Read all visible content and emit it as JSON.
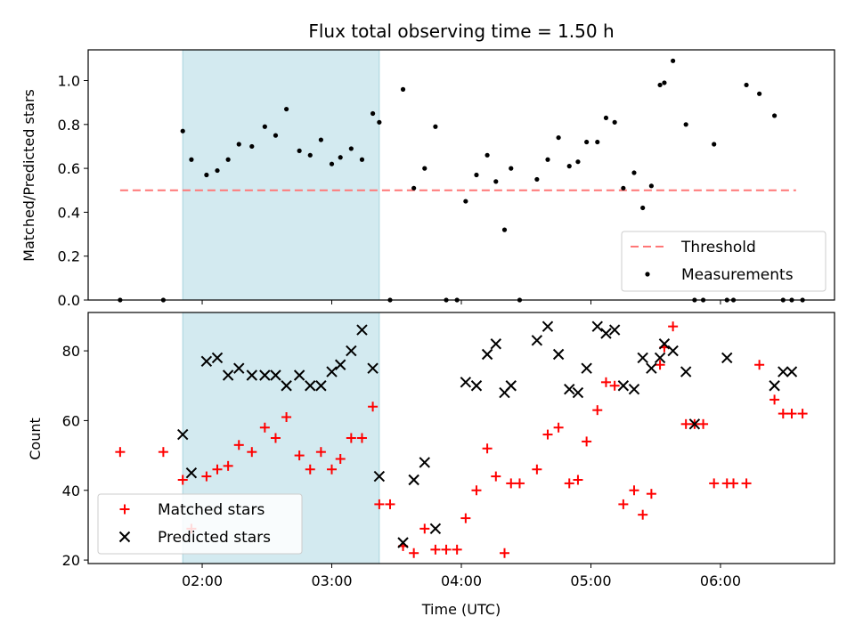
{
  "chart_data": [
    {
      "type": "scatter",
      "title": "Flux total observing time = 1.50 h",
      "ylabel": "Matched/Predicted stars",
      "xlabel": "",
      "ylim": [
        0,
        1.14
      ],
      "yticks": [
        "0.0",
        "0.2",
        "0.4",
        "0.6",
        "0.8",
        "1.0"
      ],
      "ytick_values": [
        0,
        0.2,
        0.4,
        0.6,
        0.8,
        1.0
      ],
      "xlim_hours": [
        1.12,
        6.88
      ],
      "shaded_band": {
        "x_start": "01:51",
        "x_end": "03:22",
        "color": "#d3eaf0"
      },
      "legend_position": "lower-right",
      "threshold": {
        "name": "Threshold",
        "value": 0.5,
        "x_start": "01:22",
        "x_end": "06:35",
        "color": "#ff7777"
      },
      "measurements": {
        "name": "Measurements",
        "color": "#000000",
        "x": [
          "01:22",
          "01:42",
          "01:51",
          "01:55",
          "02:02",
          "02:07",
          "02:12",
          "02:17",
          "02:23",
          "02:29",
          "02:34",
          "02:39",
          "02:45",
          "02:50",
          "02:55",
          "03:00",
          "03:04",
          "03:09",
          "03:14",
          "03:19",
          "03:22",
          "03:27",
          "03:33",
          "03:38",
          "03:43",
          "03:48",
          "03:53",
          "03:58",
          "04:02",
          "04:07",
          "04:12",
          "04:16",
          "04:20",
          "04:23",
          "04:27",
          "04:35",
          "04:40",
          "04:45",
          "04:50",
          "04:54",
          "04:58",
          "05:03",
          "05:07",
          "05:11",
          "05:15",
          "05:20",
          "05:24",
          "05:28",
          "05:32",
          "05:34",
          "05:38",
          "05:44",
          "05:48",
          "05:52",
          "05:57",
          "06:03",
          "06:06",
          "06:12",
          "06:18",
          "06:25",
          "06:29",
          "06:33",
          "06:38"
        ],
        "y": [
          0,
          0,
          0.77,
          0.64,
          0.57,
          0.59,
          0.64,
          0.71,
          0.7,
          0.79,
          0.75,
          0.87,
          0.68,
          0.66,
          0.73,
          0.62,
          0.65,
          0.69,
          0.64,
          0.85,
          0.81,
          0,
          0.96,
          0.51,
          0.6,
          0.79,
          0,
          0,
          0.45,
          0.57,
          0.66,
          0.54,
          0.32,
          0.6,
          0,
          0.55,
          0.64,
          0.74,
          0.61,
          0.63,
          0.72,
          0.72,
          0.83,
          0.81,
          0.51,
          0.58,
          0.42,
          0.52,
          0.98,
          0.99,
          1.09,
          0.8,
          0,
          0,
          0.71,
          0,
          0,
          0.98,
          0.94,
          0.84,
          0,
          0,
          0
        ]
      }
    },
    {
      "type": "scatter",
      "title": "",
      "ylabel": "Count",
      "xlabel": "Time (UTC)",
      "ylim": [
        19,
        91
      ],
      "yticks": [
        "20",
        "40",
        "60",
        "80"
      ],
      "ytick_values": [
        20,
        40,
        60,
        80
      ],
      "xlim_hours": [
        1.12,
        6.88
      ],
      "xticks": [
        "02:00",
        "03:00",
        "04:00",
        "05:00",
        "06:00"
      ],
      "xtick_hours": [
        2,
        3,
        4,
        5,
        6
      ],
      "legend_position": "lower-left",
      "series": [
        {
          "name": "Matched stars",
          "marker": "+",
          "color": "#ff0000",
          "x": [
            "01:22",
            "01:42",
            "01:51",
            "01:55",
            "02:02",
            "02:07",
            "02:12",
            "02:17",
            "02:23",
            "02:29",
            "02:34",
            "02:39",
            "02:45",
            "02:50",
            "02:55",
            "03:00",
            "03:04",
            "03:09",
            "03:14",
            "03:19",
            "03:22",
            "03:27",
            "03:33",
            "03:38",
            "03:43",
            "03:48",
            "03:53",
            "03:58",
            "04:02",
            "04:07",
            "04:12",
            "04:16",
            "04:20",
            "04:23",
            "04:27",
            "04:35",
            "04:40",
            "04:45",
            "04:50",
            "04:54",
            "04:58",
            "05:03",
            "05:07",
            "05:11",
            "05:15",
            "05:20",
            "05:24",
            "05:28",
            "05:32",
            "05:34",
            "05:38",
            "05:44",
            "05:48",
            "05:52",
            "05:57",
            "06:03",
            "06:06",
            "06:12",
            "06:18",
            "06:25",
            "06:29",
            "06:33",
            "06:38"
          ],
          "y": [
            51,
            51,
            43,
            29,
            44,
            46,
            47,
            53,
            51,
            58,
            55,
            61,
            50,
            46,
            51,
            46,
            49,
            55,
            55,
            64,
            36,
            36,
            24,
            22,
            29,
            23,
            23,
            23,
            32,
            40,
            52,
            44,
            22,
            42,
            42,
            46,
            56,
            58,
            42,
            43,
            54,
            63,
            71,
            70,
            36,
            40,
            33,
            39,
            76,
            81,
            87,
            59,
            59,
            59,
            42,
            42,
            42,
            42,
            76,
            66,
            62,
            62,
            62
          ]
        },
        {
          "name": "Predicted stars",
          "marker": "x",
          "color": "#000000",
          "x": [
            "01:51",
            "01:55",
            "02:02",
            "02:07",
            "02:12",
            "02:17",
            "02:23",
            "02:29",
            "02:34",
            "02:39",
            "02:45",
            "02:50",
            "02:55",
            "03:00",
            "03:04",
            "03:09",
            "03:14",
            "03:19",
            "03:22",
            "03:33",
            "03:38",
            "03:43",
            "03:48",
            "04:02",
            "04:07",
            "04:12",
            "04:16",
            "04:20",
            "04:23",
            "04:35",
            "04:40",
            "04:45",
            "04:50",
            "04:54",
            "04:58",
            "05:03",
            "05:07",
            "05:11",
            "05:15",
            "05:20",
            "05:24",
            "05:28",
            "05:32",
            "05:34",
            "05:38",
            "05:44",
            "05:48",
            "06:03",
            "06:25",
            "06:29",
            "06:33"
          ],
          "y": [
            56,
            45,
            77,
            78,
            73,
            75,
            73,
            73,
            73,
            70,
            73,
            70,
            70,
            74,
            76,
            80,
            86,
            75,
            44,
            25,
            43,
            48,
            29,
            71,
            70,
            79,
            82,
            68,
            70,
            83,
            87,
            79,
            69,
            68,
            75,
            87,
            85,
            86,
            70,
            69,
            78,
            75,
            78,
            82,
            80,
            74,
            59,
            78,
            70,
            74,
            74
          ]
        }
      ]
    }
  ]
}
